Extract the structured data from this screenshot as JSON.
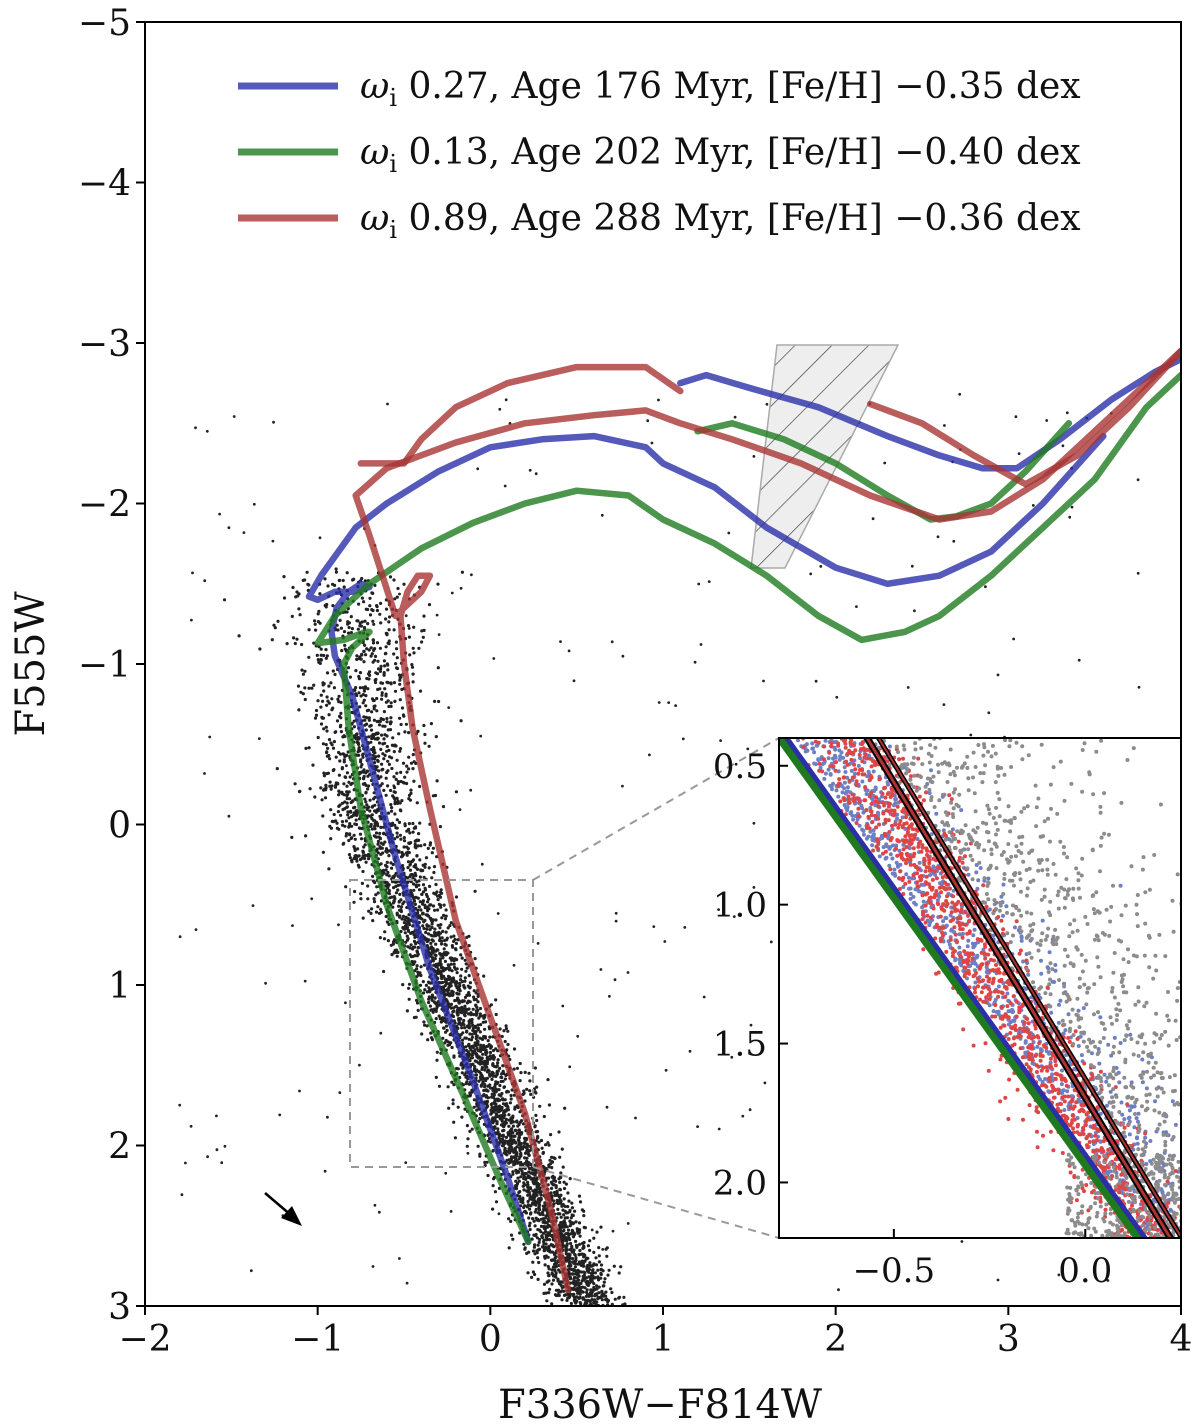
{
  "colors": {
    "blue": "#2b2fa8",
    "green": "#1f7a1f",
    "red": "#a83434",
    "points_black": "#222222",
    "points_grey": "#8c8c8c",
    "points_blue": "#6f7fc4",
    "points_red": "#e04545"
  },
  "chart_data": [
    {
      "type": "scatter",
      "title": "",
      "xlabel": "F336W−F814W",
      "ylabel": "F555W",
      "xlim": [
        -2,
        4
      ],
      "ylim": [
        3,
        -5
      ],
      "x_ticks": [
        -2,
        -1,
        0,
        1,
        2,
        3,
        4
      ],
      "x_tick_labels": [
        "−2",
        "−1",
        "0",
        "1",
        "2",
        "3",
        "4"
      ],
      "y_ticks": [
        -5,
        -4,
        -3,
        -2,
        -1,
        0,
        1,
        2,
        3
      ],
      "y_tick_labels": [
        "−5",
        "−4",
        "−3",
        "−2",
        "−1",
        "0",
        "1",
        "2",
        "3"
      ],
      "legend_position": "top-right",
      "series": [
        {
          "name": "isochrone-blue",
          "legend_prefix": "ω",
          "legend_subscript": "i",
          "legend_label": " 0.27, Age 176 Myr, [Fe/H] −0.35 dex",
          "color": "blue",
          "x": [
            0.22,
            0.1,
            -0.1,
            -0.35,
            -0.55,
            -0.7,
            -0.8,
            -0.9,
            -0.92,
            -0.89,
            -0.82,
            -0.75,
            -0.7,
            -0.8,
            -0.9,
            -1.0,
            -1.05,
            -0.98,
            -0.88,
            -0.78,
            -0.6,
            -0.3,
            0.0,
            0.3,
            0.6,
            0.9,
            1.0,
            1.3,
            1.6,
            2.0,
            2.3,
            2.6,
            2.9,
            3.2,
            3.55
          ],
          "y": [
            2.6,
            2.2,
            1.6,
            0.9,
            0.2,
            -0.4,
            -0.8,
            -1.05,
            -1.2,
            -1.35,
            -1.45,
            -1.5,
            -1.48,
            -1.45,
            -1.45,
            -1.4,
            -1.42,
            -1.55,
            -1.7,
            -1.85,
            -2.0,
            -2.2,
            -2.35,
            -2.4,
            -2.42,
            -2.35,
            -2.25,
            -2.1,
            -1.85,
            -1.6,
            -1.5,
            -1.55,
            -1.7,
            -2.0,
            -2.42
          ]
        },
        {
          "name": "isochrone-blue-upper",
          "color": "blue",
          "x": [
            1.1,
            1.25,
            1.5,
            1.9,
            2.3,
            2.6,
            2.85,
            3.05,
            3.3,
            3.6,
            3.85,
            4.0
          ],
          "y": [
            -2.75,
            -2.8,
            -2.72,
            -2.6,
            -2.42,
            -2.3,
            -2.22,
            -2.22,
            -2.4,
            -2.65,
            -2.82,
            -2.9
          ]
        },
        {
          "name": "isochrone-green",
          "legend_prefix": "ω",
          "legend_subscript": "i",
          "legend_label": " 0.13, Age 202 Myr, [Fe/H] −0.40 dex",
          "color": "green",
          "x": [
            0.22,
            0.05,
            -0.15,
            -0.4,
            -0.6,
            -0.75,
            -0.82,
            -0.85,
            -0.8,
            -0.7,
            -0.72,
            -0.85,
            -1.0,
            -0.9,
            -0.7,
            -0.4,
            -0.1,
            0.2,
            0.5,
            0.8,
            1.0,
            1.3,
            1.6,
            1.9,
            2.15,
            2.4,
            2.6,
            2.9,
            3.2,
            3.5,
            3.8,
            4.0
          ],
          "y": [
            2.6,
            2.2,
            1.7,
            1.1,
            0.5,
            -0.1,
            -0.6,
            -1.0,
            -1.1,
            -1.2,
            -1.2,
            -1.15,
            -1.13,
            -1.3,
            -1.5,
            -1.72,
            -1.88,
            -2.0,
            -2.08,
            -2.05,
            -1.9,
            -1.75,
            -1.55,
            -1.3,
            -1.15,
            -1.2,
            -1.3,
            -1.55,
            -1.85,
            -2.15,
            -2.6,
            -2.8
          ]
        },
        {
          "name": "isochrone-green-upper",
          "color": "green",
          "x": [
            1.2,
            1.4,
            1.7,
            2.0,
            2.3,
            2.55,
            2.7,
            2.9,
            3.1,
            3.35
          ],
          "y": [
            -2.45,
            -2.5,
            -2.4,
            -2.25,
            -2.05,
            -1.9,
            -1.92,
            -2.0,
            -2.2,
            -2.5
          ]
        },
        {
          "name": "isochrone-red",
          "legend_prefix": "ω",
          "legend_subscript": "i",
          "legend_label": " 0.89, Age 288 Myr, [Fe/H] −0.36 dex",
          "color": "red",
          "x": [
            0.45,
            0.35,
            0.2,
            0.0,
            -0.2,
            -0.35,
            -0.45,
            -0.5,
            -0.52,
            -0.48,
            -0.42,
            -0.35,
            -0.4,
            -0.55,
            -0.7,
            -0.78,
            -0.6,
            -0.2,
            0.2,
            0.6,
            0.9,
            1.1,
            1.4,
            1.8,
            2.2,
            2.6,
            2.9,
            3.2,
            3.5,
            3.8,
            4.0
          ],
          "y": [
            2.9,
            2.4,
            1.8,
            1.2,
            0.6,
            -0.1,
            -0.6,
            -1.0,
            -1.3,
            -1.45,
            -1.55,
            -1.55,
            -1.45,
            -1.3,
            -1.8,
            -2.05,
            -2.22,
            -2.38,
            -2.5,
            -2.55,
            -2.58,
            -2.5,
            -2.4,
            -2.25,
            -2.05,
            -1.9,
            -1.95,
            -2.15,
            -2.45,
            -2.75,
            -2.95
          ]
        },
        {
          "name": "isochrone-red-upper",
          "color": "red",
          "x": [
            -0.75,
            -0.5,
            -0.4,
            -0.2,
            0.1,
            0.5,
            0.9,
            1.1
          ],
          "y": [
            -2.25,
            -2.25,
            -2.4,
            -2.6,
            -2.75,
            -2.85,
            -2.85,
            -2.7
          ]
        },
        {
          "name": "isochrone-red-tail",
          "color": "red",
          "x": [
            2.2,
            2.5,
            2.8,
            3.1,
            3.4,
            3.7,
            4.0
          ],
          "y": [
            -2.62,
            -2.5,
            -2.3,
            -2.12,
            -2.3,
            -2.6,
            -2.95
          ]
        }
      ]
    },
    {
      "type": "scatter",
      "title": "",
      "panel": "inset",
      "xlim": [
        -0.8,
        0.25
      ],
      "ylim": [
        2.2,
        0.4
      ],
      "x_ticks": [
        -0.5,
        0.0
      ],
      "x_tick_labels": [
        "−0.5",
        "0.0"
      ],
      "y_ticks": [
        0.5,
        1.0,
        1.5,
        2.0
      ],
      "y_tick_labels": [
        "0.5",
        "1.0",
        "1.5",
        "2.0"
      ]
    }
  ]
}
